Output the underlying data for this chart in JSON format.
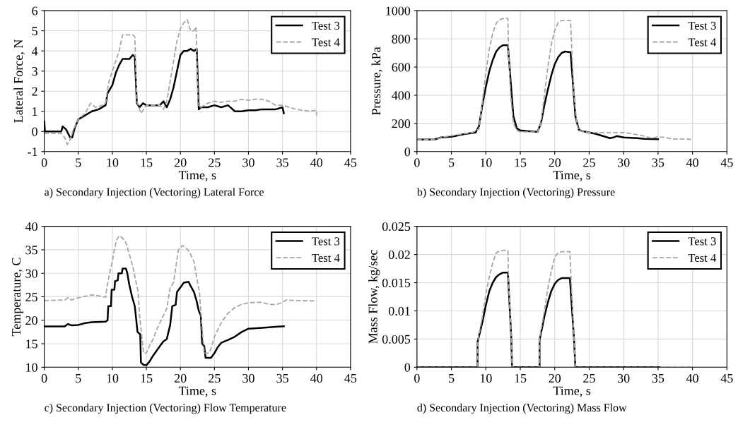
{
  "chart_data": [
    {
      "type": "line",
      "xlabel": "Time, s",
      "ylabel": "Lateral Force, N",
      "annotations": [
        "a) Secondary Injection (Vectoring) Lateral Force"
      ],
      "xlim": [
        0,
        45
      ],
      "xticks": [
        0,
        5,
        10,
        15,
        20,
        25,
        30,
        35,
        40,
        45
      ],
      "ylim": [
        -1,
        6
      ],
      "yticks": [
        -1,
        0,
        1,
        2,
        3,
        4,
        5,
        6
      ],
      "grid": true,
      "legend": "top right",
      "series": [
        {
          "name": "Test 3",
          "color": "#000000",
          "line_style": "solid",
          "x": [
            0,
            0.1,
            2.5,
            2.7,
            3.2,
            3.8,
            4.1,
            4.5,
            5,
            6,
            7,
            8,
            9,
            9.3,
            10,
            10.5,
            11,
            11.5,
            12,
            12.5,
            13,
            13.3,
            13.6,
            14,
            14.5,
            15,
            16,
            17,
            17.5,
            18,
            18.5,
            19,
            19.5,
            20,
            20.5,
            21,
            21.5,
            22,
            22.4,
            22.7,
            23,
            24,
            25,
            26,
            27,
            28,
            29,
            30,
            31,
            32,
            33,
            34,
            35,
            35.2
          ],
          "values": [
            0.5,
            0,
            0,
            0.25,
            0.1,
            -0.3,
            -0.3,
            0.2,
            0.6,
            0.8,
            1.0,
            1.1,
            1.3,
            1.9,
            2.3,
            2.9,
            3.3,
            3.6,
            3.6,
            3.6,
            3.8,
            3.7,
            1.4,
            1.2,
            1.4,
            1.3,
            1.3,
            1.3,
            1.5,
            1.2,
            1.6,
            2.2,
            3.0,
            3.8,
            4.0,
            4.0,
            4.1,
            4.0,
            4.1,
            1.1,
            1.2,
            1.2,
            1.3,
            1.2,
            1.3,
            1.0,
            1.0,
            1.05,
            1.05,
            1.1,
            1.1,
            1.1,
            1.2,
            0.9
          ]
        },
        {
          "name": "Test 4",
          "color": "#a6a6a6",
          "line_style": "dashed",
          "x": [
            0,
            2.5,
            3,
            3.4,
            3.8,
            4.3,
            5,
            6,
            6.8,
            7.5,
            8.5,
            9,
            9.5,
            10,
            10.5,
            11,
            11.5,
            12,
            13,
            13.3,
            13.6,
            14.2,
            15,
            16,
            17,
            17.5,
            18,
            18.5,
            19,
            19.5,
            20,
            20.5,
            21,
            21.5,
            22,
            22.3,
            22.6,
            23,
            24,
            25,
            26,
            27,
            28,
            29,
            30,
            31,
            32,
            33,
            34,
            35,
            36,
            37,
            38,
            39,
            40,
            40
          ],
          "values": [
            -0.1,
            -0.1,
            -0.3,
            -0.65,
            -0.4,
            0.1,
            0.6,
            0.9,
            1.4,
            1.2,
            1.3,
            1.4,
            2.5,
            3.0,
            3.5,
            4.0,
            4.8,
            4.8,
            4.8,
            4.7,
            1.5,
            0.9,
            1.3,
            1.3,
            1.3,
            1.1,
            1.5,
            2.5,
            3.5,
            4.5,
            5.1,
            5.4,
            5.55,
            5.0,
            5.0,
            5.2,
            1.3,
            1.2,
            1.4,
            1.5,
            1.45,
            1.5,
            1.5,
            1.6,
            1.55,
            1.6,
            1.6,
            1.5,
            1.3,
            1.3,
            1.2,
            1.1,
            1.05,
            1.0,
            1.05,
            0.8
          ]
        }
      ]
    },
    {
      "type": "line",
      "xlabel": "Time, s",
      "ylabel": "Pressure, kPa",
      "annotations": [
        "b) Secondary Injection (Vectoring) Pressure"
      ],
      "xlim": [
        0,
        45
      ],
      "xticks": [
        0,
        5,
        10,
        15,
        20,
        25,
        30,
        35,
        40,
        45
      ],
      "ylim": [
        0,
        1000
      ],
      "yticks": [
        0,
        200,
        400,
        600,
        800,
        1000
      ],
      "grid": true,
      "legend": "top right",
      "series": [
        {
          "name": "Test 3",
          "color": "#000000",
          "line_style": "solid",
          "x": [
            0,
            2.5,
            3.5,
            5,
            6,
            7,
            8.5,
            9,
            9.5,
            10,
            10.5,
            11,
            11.5,
            12,
            12.5,
            13.2,
            13.6,
            14,
            14.5,
            15,
            16,
            17.5,
            18,
            18.5,
            19,
            19.5,
            20,
            20.5,
            21,
            21.5,
            22.3,
            22.7,
            23,
            23.5,
            24,
            25,
            26,
            27,
            28,
            28.5,
            29,
            30,
            32,
            33,
            35
          ],
          "values": [
            85,
            85,
            100,
            105,
            115,
            125,
            135,
            180,
            330,
            460,
            570,
            650,
            710,
            740,
            755,
            755,
            500,
            250,
            165,
            150,
            145,
            140,
            200,
            330,
            440,
            540,
            620,
            670,
            700,
            710,
            705,
            450,
            250,
            155,
            145,
            135,
            125,
            110,
            95,
            100,
            110,
            100,
            95,
            90,
            88
          ]
        },
        {
          "name": "Test 4",
          "color": "#a6a6a6",
          "line_style": "dashed",
          "x": [
            0,
            2.5,
            4,
            6,
            8,
            9,
            9.5,
            10,
            10.5,
            11,
            11.5,
            12,
            12.5,
            13.2,
            13.3,
            13.6,
            14,
            14.5,
            15,
            17.5,
            18,
            18.5,
            19,
            19.5,
            20,
            20.5,
            21,
            22.3,
            22.5,
            22.8,
            23.2,
            23.5,
            25,
            26,
            29,
            30,
            32,
            33,
            34,
            35,
            36,
            37,
            39,
            40
          ],
          "values": [
            85,
            85,
            105,
            120,
            135,
            160,
            350,
            560,
            730,
            840,
            910,
            935,
            945,
            945,
            700,
            400,
            200,
            150,
            140,
            140,
            200,
            400,
            600,
            760,
            860,
            915,
            930,
            930,
            700,
            400,
            200,
            150,
            135,
            135,
            135,
            135,
            120,
            110,
            95,
            105,
            100,
            90,
            90,
            85
          ]
        }
      ]
    },
    {
      "type": "line",
      "xlabel": "Time, s",
      "ylabel": "Temperature, C",
      "annotations": [
        "c) Secondary Injection (Vectoring) Flow Temperature"
      ],
      "xlim": [
        0,
        45
      ],
      "xticks": [
        0,
        5,
        10,
        15,
        20,
        25,
        30,
        35,
        40,
        45
      ],
      "ylim": [
        10,
        40
      ],
      "yticks": [
        10,
        15,
        20,
        25,
        30,
        35,
        40
      ],
      "grid": true,
      "legend": "top right",
      "series": [
        {
          "name": "Test 3",
          "color": "#000000",
          "line_style": "solid",
          "x": [
            0,
            3,
            3.5,
            4,
            5,
            6,
            7,
            9,
            9.3,
            9.4,
            9.8,
            9.9,
            10.3,
            10.4,
            10.8,
            10.9,
            11.4,
            11.5,
            12,
            12.2,
            12.5,
            12.9,
            13.3,
            13.7,
            14.1,
            14.2,
            14.6,
            15,
            15.5,
            16,
            16.5,
            17,
            17.5,
            18,
            18.5,
            18.8,
            19.3,
            19.5,
            20,
            20.5,
            21.2,
            21.5,
            22,
            22.4,
            22.7,
            23,
            23.2,
            23.5,
            23.7,
            24.5,
            25,
            25.5,
            26,
            27,
            28,
            29,
            30,
            32,
            34,
            35.2
          ],
          "values": [
            18.7,
            18.7,
            19.2,
            18.9,
            19,
            19.4,
            19.6,
            19.7,
            20,
            23,
            23,
            26.5,
            26.5,
            28.3,
            28.5,
            30,
            30,
            31,
            31,
            30,
            27.5,
            25,
            23,
            17.5,
            17,
            11,
            10.5,
            10.4,
            11.3,
            12.5,
            13.5,
            14.5,
            15.5,
            16,
            19,
            23,
            23.3,
            26,
            27,
            28,
            28.2,
            27.3,
            26,
            24,
            22,
            21,
            15,
            14.5,
            12,
            12,
            13,
            14.3,
            15.2,
            15.8,
            16.5,
            17.5,
            18.2,
            18.4,
            18.6,
            18.7
          ]
        },
        {
          "name": "Test 4",
          "color": "#a6a6a6",
          "line_style": "dashed",
          "x": [
            0,
            3,
            3.5,
            4,
            5,
            6,
            7,
            8,
            9,
            9.2,
            9.6,
            10,
            10.3,
            10.6,
            11,
            11.5,
            12,
            12.5,
            13,
            13.5,
            13.8,
            14,
            14.3,
            14.6,
            15,
            15.5,
            16,
            16.5,
            17,
            17.5,
            18,
            18.5,
            19,
            19.3,
            19.7,
            20.3,
            21,
            21.5,
            22,
            22.4,
            22.8,
            23.2,
            23.5,
            24.2,
            24.5,
            25,
            25.5,
            26,
            27,
            28,
            29,
            30,
            31,
            32,
            33,
            34,
            35,
            35.5,
            37,
            40
          ],
          "values": [
            24.2,
            24.3,
            24.8,
            24.3,
            24.8,
            25.1,
            25.4,
            25.2,
            24.9,
            27,
            30,
            32.5,
            35,
            37,
            38,
            37.5,
            36.5,
            34,
            31.5,
            28,
            26,
            21,
            17,
            13,
            13,
            14.7,
            16,
            18,
            19.5,
            21,
            22.5,
            27,
            28,
            31,
            35,
            35.9,
            35.2,
            34,
            32.5,
            29,
            26,
            18,
            13,
            13,
            14,
            16.5,
            18,
            19.5,
            21.5,
            22.7,
            23.4,
            23.7,
            23.8,
            23.8,
            23.4,
            23.3,
            23.8,
            24.3,
            24.2,
            24.1
          ]
        }
      ]
    },
    {
      "type": "line",
      "xlabel": "Time, s",
      "ylabel": "Mass Flow, kg/sec",
      "annotations": [
        "d) Secondary Injection (Vectoring) Mass Flow"
      ],
      "xlim": [
        0,
        45
      ],
      "xticks": [
        0,
        5,
        10,
        15,
        20,
        25,
        30,
        35,
        40,
        45
      ],
      "ylim": [
        0,
        0.025
      ],
      "yticks": [
        0,
        0.005,
        0.01,
        0.015,
        0.02,
        0.025
      ],
      "grid": true,
      "legend": "top right",
      "series": [
        {
          "name": "Test 3",
          "color": "#000000",
          "line_style": "solid",
          "x": [
            0,
            8.8,
            8.8,
            9.5,
            10,
            10.5,
            11,
            11.5,
            12,
            12.5,
            13.2,
            13.7,
            13.8,
            17.8,
            17.8,
            18.5,
            19,
            19.5,
            20,
            20.5,
            21,
            22.2,
            22.8,
            23,
            35.2
          ],
          "values": [
            0,
            0,
            0.0045,
            0.008,
            0.011,
            0.0135,
            0.015,
            0.016,
            0.0165,
            0.0168,
            0.0168,
            0.005,
            0,
            0,
            0.0048,
            0.009,
            0.0115,
            0.0135,
            0.0148,
            0.0155,
            0.0158,
            0.0158,
            0.005,
            0,
            0
          ]
        },
        {
          "name": "Test 4",
          "color": "#a6a6a6",
          "line_style": "dashed",
          "x": [
            0,
            8.8,
            8.8,
            9.5,
            10,
            10.5,
            11,
            11.5,
            12,
            13,
            13.2,
            13.3,
            13.7,
            13.8,
            17.8,
            17.8,
            18.5,
            19,
            19.5,
            20,
            20.5,
            21,
            22.2,
            22.4,
            22.8,
            23,
            40
          ],
          "values": [
            0,
            0,
            0.0045,
            0.009,
            0.013,
            0.016,
            0.0185,
            0.0203,
            0.0206,
            0.0208,
            0.0207,
            0.015,
            0.005,
            0,
            0,
            0.005,
            0.01,
            0.014,
            0.017,
            0.0195,
            0.0203,
            0.0205,
            0.0205,
            0.015,
            0.005,
            0,
            0
          ]
        }
      ]
    }
  ]
}
